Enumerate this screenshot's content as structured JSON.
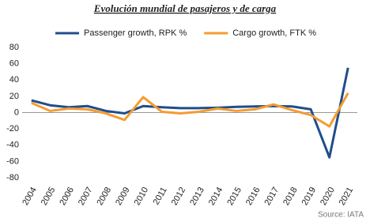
{
  "chart_data": {
    "type": "line",
    "title": "Evolución mundial de pasajeros y de carga",
    "categories": [
      "2004",
      "2005",
      "2006",
      "2007",
      "2008",
      "2009",
      "2010",
      "2011",
      "2012",
      "2013",
      "2014",
      "2015",
      "2016",
      "2017",
      "2018",
      "2019",
      "2020",
      "2021"
    ],
    "series": [
      {
        "name": "Passenger growth, RPK %",
        "color": "#1f4e8c",
        "values": [
          15,
          9,
          6.5,
          8,
          2,
          -1,
          8,
          6.5,
          5.5,
          5.5,
          6,
          7,
          7.5,
          8,
          7.5,
          4,
          -55,
          55
        ]
      },
      {
        "name": "Cargo growth, FTK %",
        "color": "#f39c32",
        "values": [
          12,
          2,
          5,
          4,
          -1,
          -9,
          19,
          1,
          -1,
          1,
          5,
          2,
          4,
          10,
          3,
          -3,
          -17,
          24
        ]
      }
    ],
    "ylim": [
      -80,
      80
    ],
    "yticks": [
      -80,
      -60,
      -40,
      -20,
      0,
      20,
      40,
      60,
      80
    ],
    "grid": false,
    "source": "Source: IATA"
  }
}
